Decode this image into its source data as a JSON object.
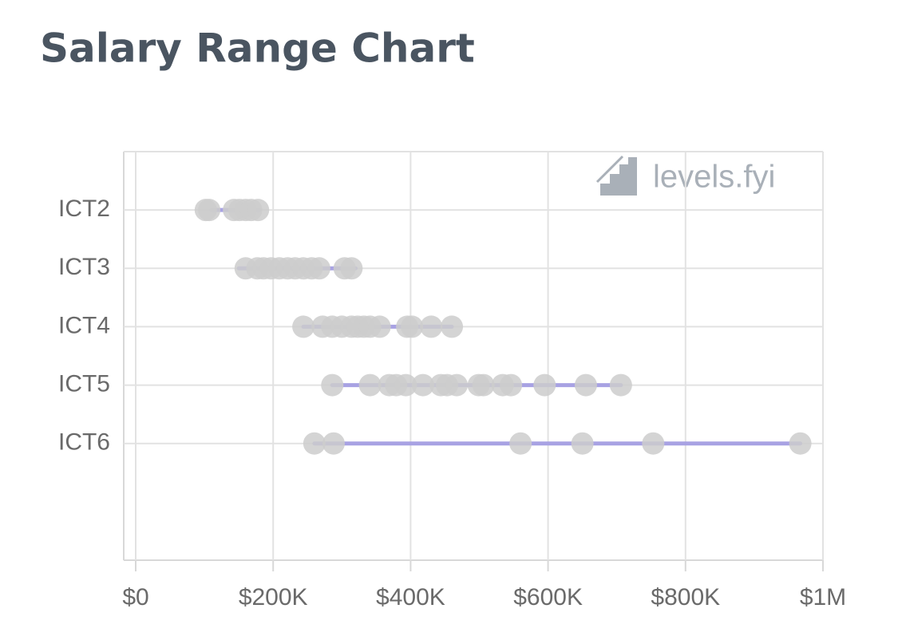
{
  "chart_data": {
    "type": "range",
    "title": "Salary Range Chart",
    "watermark": "levels.fyi",
    "categories": [
      "ICT2",
      "ICT3",
      "ICT4",
      "ICT5",
      "ICT6"
    ],
    "range_min": [
      110000,
      150000,
      244000,
      286000,
      260000
    ],
    "range_max": [
      180000,
      320000,
      460000,
      706000,
      967000
    ],
    "points": [
      [
        102000,
        107000,
        143000,
        151000,
        160000,
        168000,
        178000
      ],
      [
        160000,
        177000,
        186000,
        197000,
        209000,
        221000,
        232000,
        244000,
        256000,
        267000,
        304000,
        314000
      ],
      [
        244000,
        272000,
        286000,
        300000,
        314000,
        323000,
        332000,
        341000,
        355000,
        395000,
        402000,
        430000,
        460000
      ],
      [
        286000,
        341000,
        369000,
        379000,
        393000,
        418000,
        444000,
        453000,
        467000,
        499000,
        506000,
        534000,
        546000,
        595000,
        655000,
        706000
      ],
      [
        260000,
        288000,
        560000,
        650000,
        753000,
        967000
      ]
    ],
    "point_color": "#cdcdcd",
    "range_color": "#a8a2e3",
    "xlim": [
      0,
      1000000
    ],
    "xticks": [
      {
        "value": 0,
        "label": "$0"
      },
      {
        "value": 200000,
        "label": "$200K"
      },
      {
        "value": 400000,
        "label": "$400K"
      },
      {
        "value": 600000,
        "label": "$600K"
      },
      {
        "value": 800000,
        "label": "$800K"
      },
      {
        "value": 1000000,
        "label": "$1M"
      }
    ],
    "grid": true
  }
}
